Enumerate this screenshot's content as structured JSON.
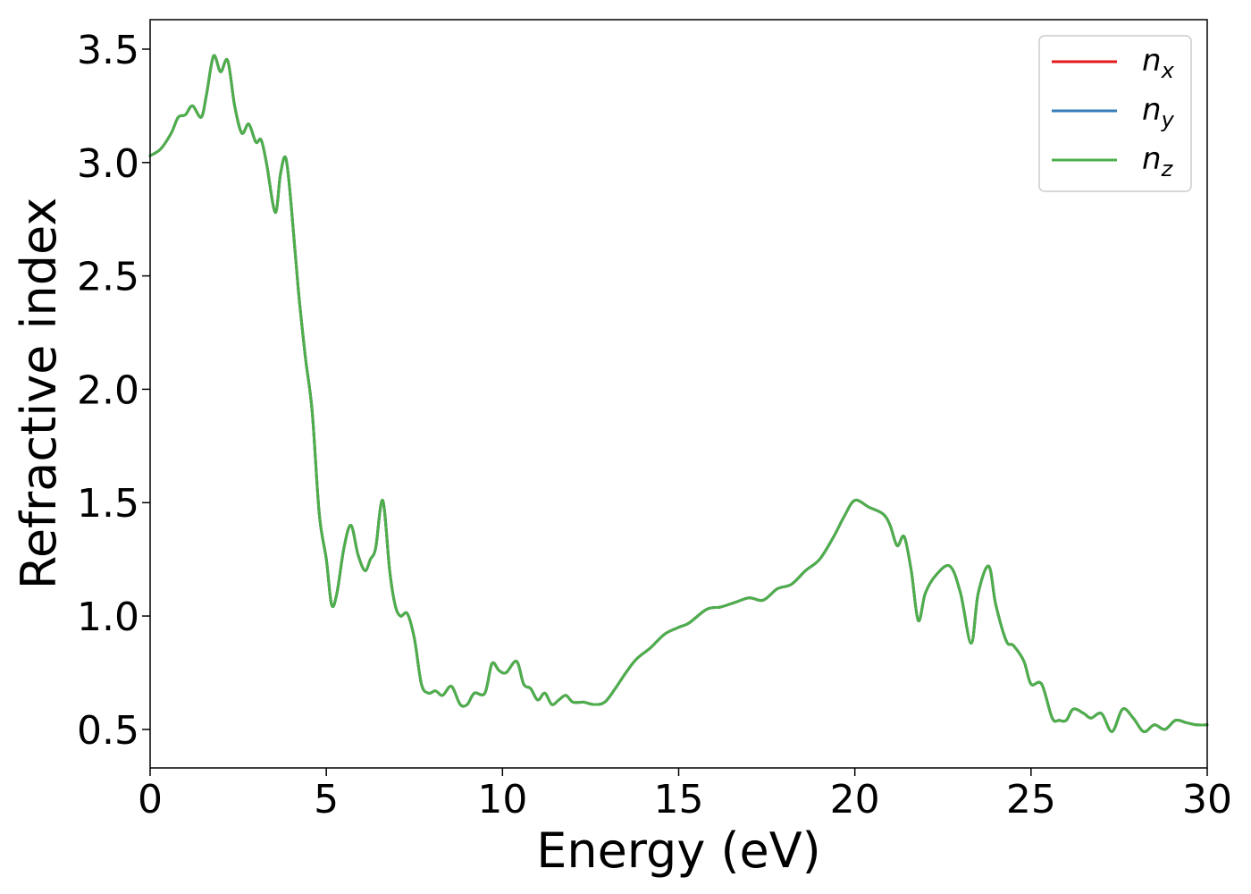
{
  "chart_data": {
    "type": "line",
    "xlabel": "Energy (eV)",
    "ylabel": "Refractive index",
    "xlim": [
      0,
      30
    ],
    "ylim": [
      0.33,
      3.63
    ],
    "xticks": [
      0,
      5,
      10,
      15,
      20,
      25,
      30
    ],
    "yticks": [
      0.5,
      1.0,
      1.5,
      2.0,
      2.5,
      3.0,
      3.5
    ],
    "xtick_labels": [
      "0",
      "5",
      "10",
      "15",
      "20",
      "25",
      "30"
    ],
    "ytick_labels": [
      "0.5",
      "1.0",
      "1.5",
      "2.0",
      "2.5",
      "3.0",
      "3.5"
    ],
    "grid": false,
    "legend_position": "top-right",
    "x": [
      0,
      0.3,
      0.6,
      0.8,
      1.0,
      1.2,
      1.45,
      1.6,
      1.8,
      2.0,
      2.2,
      2.4,
      2.6,
      2.8,
      3.0,
      3.15,
      3.3,
      3.55,
      3.7,
      3.85,
      4.0,
      4.2,
      4.4,
      4.6,
      4.8,
      5.0,
      5.15,
      5.3,
      5.5,
      5.7,
      5.9,
      6.1,
      6.25,
      6.4,
      6.6,
      6.8,
      6.95,
      7.1,
      7.3,
      7.5,
      7.7,
      7.9,
      8.1,
      8.3,
      8.55,
      8.8,
      9.0,
      9.2,
      9.5,
      9.7,
      9.9,
      10.1,
      10.4,
      10.6,
      10.8,
      11.0,
      11.2,
      11.4,
      11.6,
      11.8,
      12.0,
      12.3,
      12.6,
      12.9,
      13.2,
      13.5,
      13.8,
      14.2,
      14.6,
      15.0,
      15.3,
      15.8,
      16.2,
      16.6,
      17.0,
      17.4,
      17.8,
      18.2,
      18.6,
      19.0,
      19.4,
      19.7,
      20.0,
      20.4,
      20.8,
      21.0,
      21.2,
      21.4,
      21.6,
      21.8,
      22.0,
      22.3,
      22.7,
      23.0,
      23.3,
      23.5,
      23.8,
      24.0,
      24.3,
      24.5,
      24.8,
      25.0,
      25.3,
      25.6,
      25.8,
      26.0,
      26.2,
      26.5,
      26.7,
      27.0,
      27.3,
      27.6,
      27.9,
      28.2,
      28.5,
      28.8,
      29.1,
      29.4,
      29.7,
      30.0
    ],
    "series": [
      {
        "name": "n_x",
        "label_base": "n",
        "label_sub": "x",
        "color": "#e41a1c",
        "values": [
          3.03,
          3.06,
          3.13,
          3.2,
          3.21,
          3.25,
          3.2,
          3.3,
          3.47,
          3.4,
          3.45,
          3.25,
          3.13,
          3.17,
          3.09,
          3.1,
          3.0,
          2.78,
          2.95,
          3.02,
          2.82,
          2.45,
          2.15,
          1.9,
          1.45,
          1.25,
          1.05,
          1.1,
          1.3,
          1.4,
          1.27,
          1.2,
          1.25,
          1.3,
          1.51,
          1.2,
          1.05,
          1.0,
          1.01,
          0.9,
          0.7,
          0.66,
          0.67,
          0.65,
          0.69,
          0.61,
          0.61,
          0.66,
          0.66,
          0.79,
          0.76,
          0.75,
          0.8,
          0.7,
          0.68,
          0.63,
          0.66,
          0.61,
          0.63,
          0.65,
          0.62,
          0.62,
          0.61,
          0.62,
          0.68,
          0.75,
          0.81,
          0.86,
          0.92,
          0.95,
          0.97,
          1.03,
          1.04,
          1.06,
          1.08,
          1.07,
          1.12,
          1.14,
          1.2,
          1.25,
          1.35,
          1.44,
          1.51,
          1.48,
          1.45,
          1.4,
          1.31,
          1.35,
          1.2,
          0.98,
          1.1,
          1.18,
          1.22,
          1.1,
          0.88,
          1.1,
          1.22,
          1.05,
          0.89,
          0.87,
          0.8,
          0.7,
          0.7,
          0.55,
          0.54,
          0.54,
          0.59,
          0.57,
          0.55,
          0.57,
          0.49,
          0.59,
          0.55,
          0.49,
          0.52,
          0.5,
          0.54,
          0.53,
          0.52,
          0.52
        ]
      },
      {
        "name": "n_y",
        "label_base": "n",
        "label_sub": "y",
        "color": "#377eb8",
        "values": [
          3.03,
          3.06,
          3.13,
          3.2,
          3.21,
          3.25,
          3.2,
          3.3,
          3.47,
          3.4,
          3.45,
          3.25,
          3.13,
          3.17,
          3.09,
          3.1,
          3.0,
          2.78,
          2.95,
          3.02,
          2.82,
          2.45,
          2.15,
          1.9,
          1.45,
          1.25,
          1.05,
          1.1,
          1.3,
          1.4,
          1.27,
          1.2,
          1.25,
          1.3,
          1.51,
          1.2,
          1.05,
          1.0,
          1.01,
          0.9,
          0.7,
          0.66,
          0.67,
          0.65,
          0.69,
          0.61,
          0.61,
          0.66,
          0.66,
          0.79,
          0.76,
          0.75,
          0.8,
          0.7,
          0.68,
          0.63,
          0.66,
          0.61,
          0.63,
          0.65,
          0.62,
          0.62,
          0.61,
          0.62,
          0.68,
          0.75,
          0.81,
          0.86,
          0.92,
          0.95,
          0.97,
          1.03,
          1.04,
          1.06,
          1.08,
          1.07,
          1.12,
          1.14,
          1.2,
          1.25,
          1.35,
          1.44,
          1.51,
          1.48,
          1.45,
          1.4,
          1.31,
          1.35,
          1.2,
          0.98,
          1.1,
          1.18,
          1.22,
          1.1,
          0.88,
          1.1,
          1.22,
          1.05,
          0.89,
          0.87,
          0.8,
          0.7,
          0.7,
          0.55,
          0.54,
          0.54,
          0.59,
          0.57,
          0.55,
          0.57,
          0.49,
          0.59,
          0.55,
          0.49,
          0.52,
          0.5,
          0.54,
          0.53,
          0.52,
          0.52
        ]
      },
      {
        "name": "n_z",
        "label_base": "n",
        "label_sub": "z",
        "color": "#4daf4a",
        "values": [
          3.03,
          3.06,
          3.13,
          3.2,
          3.21,
          3.25,
          3.2,
          3.3,
          3.47,
          3.4,
          3.45,
          3.25,
          3.13,
          3.17,
          3.09,
          3.1,
          3.0,
          2.78,
          2.95,
          3.02,
          2.82,
          2.45,
          2.15,
          1.9,
          1.45,
          1.25,
          1.05,
          1.1,
          1.3,
          1.4,
          1.27,
          1.2,
          1.25,
          1.3,
          1.51,
          1.2,
          1.05,
          1.0,
          1.01,
          0.9,
          0.7,
          0.66,
          0.67,
          0.65,
          0.69,
          0.61,
          0.61,
          0.66,
          0.66,
          0.79,
          0.76,
          0.75,
          0.8,
          0.7,
          0.68,
          0.63,
          0.66,
          0.61,
          0.63,
          0.65,
          0.62,
          0.62,
          0.61,
          0.62,
          0.68,
          0.75,
          0.81,
          0.86,
          0.92,
          0.95,
          0.97,
          1.03,
          1.04,
          1.06,
          1.08,
          1.07,
          1.12,
          1.14,
          1.2,
          1.25,
          1.35,
          1.44,
          1.51,
          1.48,
          1.45,
          1.4,
          1.31,
          1.35,
          1.2,
          0.98,
          1.1,
          1.18,
          1.22,
          1.1,
          0.88,
          1.1,
          1.22,
          1.05,
          0.89,
          0.87,
          0.8,
          0.7,
          0.7,
          0.55,
          0.54,
          0.54,
          0.59,
          0.57,
          0.55,
          0.57,
          0.49,
          0.59,
          0.55,
          0.49,
          0.52,
          0.5,
          0.54,
          0.53,
          0.52,
          0.52
        ]
      }
    ]
  }
}
